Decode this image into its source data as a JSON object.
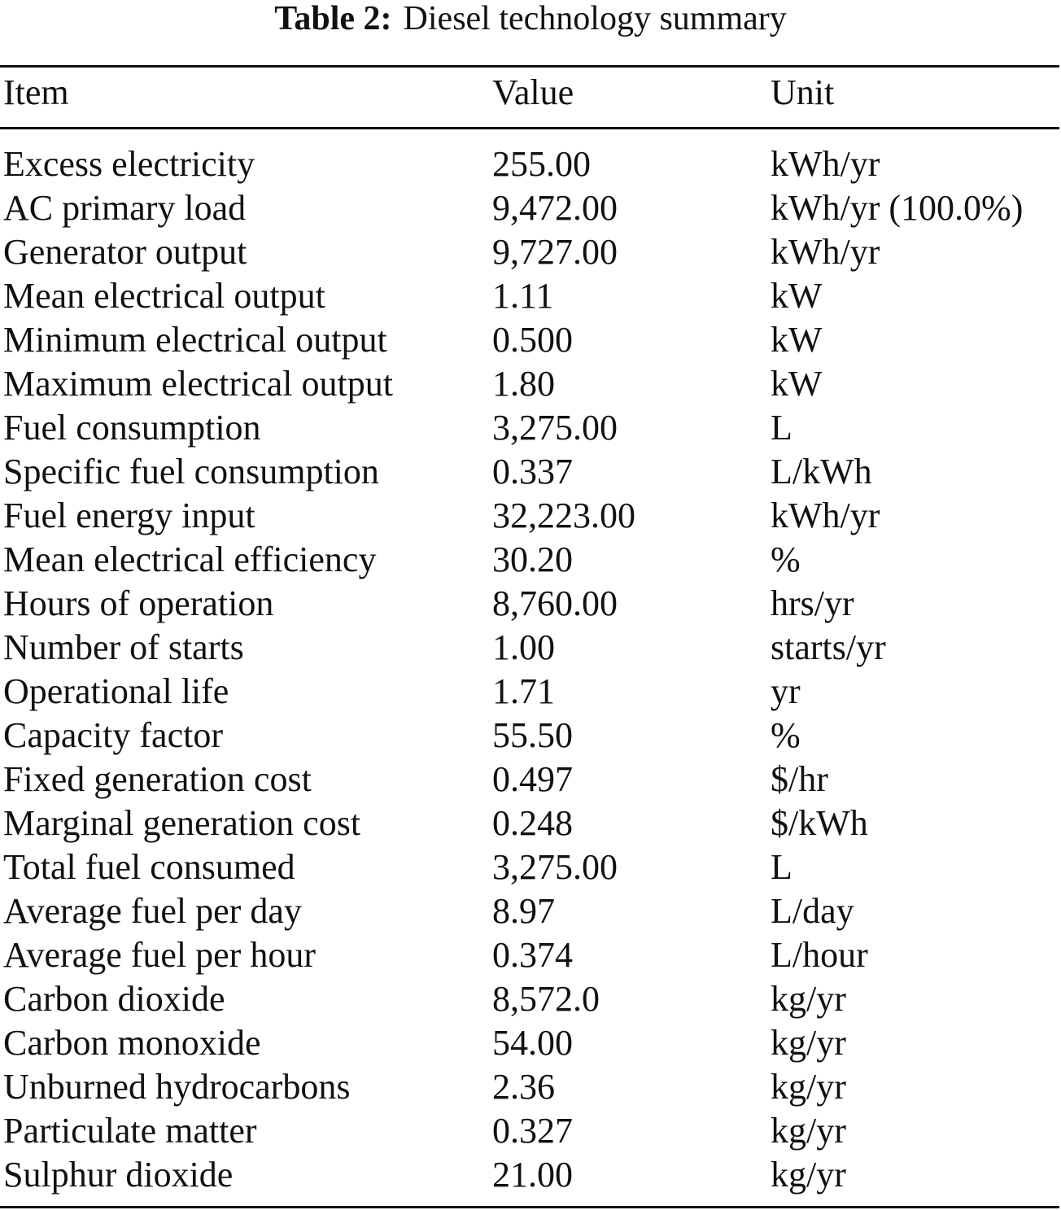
{
  "caption": {
    "label": "Table 2:",
    "title": "Diesel technology summary"
  },
  "table": {
    "columns": [
      "Item",
      "Value",
      "Unit"
    ],
    "rows": [
      {
        "item": "Excess electricity",
        "value": "255.00",
        "unit": "kWh/yr"
      },
      {
        "item": "AC primary load",
        "value": "9,472.00",
        "unit": "kWh/yr (100.0%)"
      },
      {
        "item": "Generator output",
        "value": "9,727.00",
        "unit": "kWh/yr"
      },
      {
        "item": "Mean electrical output",
        "value": "1.11",
        "unit": "kW"
      },
      {
        "item": "Minimum electrical output",
        "value": "0.500",
        "unit": "kW"
      },
      {
        "item": "Maximum electrical output",
        "value": "1.80",
        "unit": "kW"
      },
      {
        "item": "Fuel consumption",
        "value": "3,275.00",
        "unit": "L"
      },
      {
        "item": "Specific fuel consumption",
        "value": "0.337",
        "unit": "L/kWh"
      },
      {
        "item": "Fuel energy input",
        "value": "32,223.00",
        "unit": "kWh/yr"
      },
      {
        "item": "Mean electrical efficiency",
        "value": "30.20",
        "unit": "%"
      },
      {
        "item": "Hours of operation",
        "value": "8,760.00",
        "unit": "hrs/yr"
      },
      {
        "item": "Number of starts",
        "value": "1.00",
        "unit": "starts/yr"
      },
      {
        "item": "Operational life",
        "value": "1.71",
        "unit": "yr"
      },
      {
        "item": "Capacity factor",
        "value": "55.50",
        "unit": "%"
      },
      {
        "item": "Fixed generation cost",
        "value": "0.497",
        "unit": "$/hr"
      },
      {
        "item": "Marginal generation cost",
        "value": "0.248",
        "unit": "$/kWh"
      },
      {
        "item": "Total fuel consumed",
        "value": "3,275.00",
        "unit": "L"
      },
      {
        "item": "Average fuel per day",
        "value": "8.97",
        "unit": "L/day"
      },
      {
        "item": "Average fuel per hour",
        "value": "0.374",
        "unit": "L/hour"
      },
      {
        "item": "Carbon dioxide",
        "value": "8,572.0",
        "unit": "kg/yr"
      },
      {
        "item": "Carbon monoxide",
        "value": "54.00",
        "unit": "kg/yr"
      },
      {
        "item": "Unburned hydrocarbons",
        "value": "2.36",
        "unit": "kg/yr"
      },
      {
        "item": "Particulate matter",
        "value": "0.327",
        "unit": "kg/yr"
      },
      {
        "item": "Sulphur dioxide",
        "value": "21.00",
        "unit": "kg/yr"
      }
    ]
  }
}
